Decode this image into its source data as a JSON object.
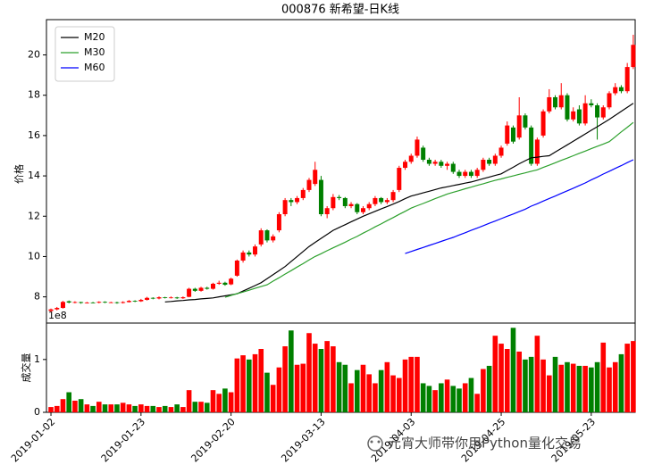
{
  "chart_data": [
    {
      "type": "candlestick",
      "title": "000876 新希望-日K线",
      "ylabel": "价格",
      "up_color": "#ff0000",
      "down_color": "#008000",
      "open": [
        7.3,
        7.38,
        7.45,
        7.78,
        7.72,
        7.74,
        7.7,
        7.72,
        7.71,
        7.75,
        7.72,
        7.73,
        7.7,
        7.74,
        7.8,
        7.78,
        7.85,
        7.95,
        7.92,
        7.98,
        7.95,
        7.97,
        7.93,
        8.0,
        8.4,
        8.3,
        8.45,
        8.4,
        8.65,
        8.7,
        8.62,
        9.05,
        9.8,
        10.2,
        10.1,
        10.6,
        11.3,
        10.8,
        11.3,
        12.1,
        12.8,
        12.7,
        12.9,
        13.3,
        13.6,
        13.8,
        12.1,
        12.4,
        12.95,
        12.9,
        12.5,
        12.6,
        12.2,
        12.4,
        12.6,
        12.9,
        12.7,
        12.8,
        13.3,
        14.4,
        14.7,
        15.0,
        15.4,
        14.8,
        14.6,
        14.7,
        14.5,
        14.6,
        14.2,
        14.0,
        14.2,
        14.0,
        14.3,
        14.8,
        14.6,
        15.0,
        15.6,
        16.4,
        15.9,
        17.0,
        16.4,
        14.6,
        16.0,
        17.2,
        17.9,
        17.4,
        18.0,
        16.8,
        17.3,
        16.6,
        17.6,
        17.5,
        16.9,
        17.4,
        18.1,
        18.4,
        18.2,
        19.4
      ],
      "high": [
        7.42,
        7.5,
        7.8,
        7.82,
        7.78,
        7.76,
        7.75,
        7.75,
        7.78,
        7.78,
        7.76,
        7.76,
        7.78,
        7.84,
        7.83,
        7.9,
        8.0,
        7.98,
        8.02,
        8.0,
        8.02,
        8.0,
        8.02,
        8.45,
        8.45,
        8.5,
        8.5,
        8.7,
        8.8,
        8.75,
        8.95,
        9.85,
        10.3,
        10.3,
        10.6,
        11.4,
        11.35,
        11.1,
        12.2,
        12.9,
        12.9,
        13.0,
        13.4,
        13.9,
        14.7,
        14.0,
        12.5,
        13.1,
        13.05,
        12.95,
        12.7,
        12.65,
        12.5,
        12.7,
        13.0,
        12.95,
        12.9,
        13.3,
        14.5,
        14.8,
        15.1,
        15.95,
        15.5,
        14.9,
        14.8,
        14.8,
        14.7,
        14.7,
        14.3,
        14.3,
        14.3,
        14.4,
        14.9,
        14.9,
        15.1,
        15.5,
        16.7,
        16.5,
        17.9,
        17.1,
        16.5,
        15.9,
        17.3,
        18.3,
        18.0,
        18.6,
        18.1,
        17.4,
        17.5,
        18.0,
        17.8,
        17.6,
        17.5,
        18.2,
        18.6,
        18.5,
        19.6,
        21.0
      ],
      "low": [
        7.25,
        7.33,
        7.42,
        7.68,
        7.68,
        7.66,
        7.67,
        7.68,
        7.68,
        7.69,
        7.69,
        7.66,
        7.67,
        7.72,
        7.74,
        7.75,
        7.82,
        7.88,
        7.88,
        7.92,
        7.92,
        7.9,
        7.9,
        7.98,
        8.25,
        8.26,
        8.36,
        8.36,
        8.6,
        8.55,
        8.58,
        9.0,
        9.7,
        10.0,
        10.0,
        10.5,
        10.7,
        10.7,
        11.2,
        12.0,
        12.5,
        12.6,
        12.8,
        13.2,
        13.5,
        12.0,
        11.9,
        12.3,
        12.8,
        12.4,
        12.4,
        12.1,
        12.1,
        12.3,
        12.5,
        12.6,
        12.6,
        12.7,
        13.2,
        14.3,
        14.6,
        14.9,
        14.7,
        14.5,
        14.5,
        14.4,
        14.3,
        14.1,
        13.9,
        13.9,
        13.9,
        13.9,
        14.2,
        14.5,
        14.5,
        14.9,
        15.5,
        15.6,
        15.8,
        16.3,
        14.5,
        14.5,
        15.9,
        17.1,
        17.3,
        17.3,
        16.7,
        16.7,
        16.5,
        16.5,
        17.4,
        15.8,
        16.8,
        17.3,
        18.0,
        18.1,
        18.1,
        19.3
      ],
      "close": [
        7.38,
        7.45,
        7.75,
        7.72,
        7.74,
        7.7,
        7.72,
        7.71,
        7.75,
        7.72,
        7.73,
        7.7,
        7.74,
        7.8,
        7.78,
        7.85,
        7.95,
        7.92,
        7.98,
        7.95,
        7.97,
        7.93,
        7.98,
        8.4,
        8.3,
        8.45,
        8.4,
        8.65,
        8.7,
        8.6,
        8.9,
        9.8,
        10.2,
        10.1,
        10.5,
        11.3,
        10.8,
        11.0,
        12.1,
        12.8,
        12.7,
        12.9,
        13.3,
        13.8,
        14.3,
        12.1,
        12.4,
        12.95,
        12.9,
        12.5,
        12.6,
        12.2,
        12.4,
        12.6,
        12.9,
        12.7,
        12.8,
        13.2,
        14.4,
        14.7,
        15.0,
        15.8,
        14.8,
        14.6,
        14.7,
        14.5,
        14.6,
        14.2,
        14.0,
        14.2,
        14.0,
        14.3,
        14.8,
        14.6,
        15.0,
        15.4,
        16.5,
        15.7,
        17.0,
        16.4,
        14.6,
        15.8,
        17.2,
        17.9,
        17.4,
        18.0,
        16.8,
        17.2,
        16.6,
        17.6,
        17.5,
        16.9,
        17.4,
        18.1,
        18.4,
        18.2,
        19.4,
        20.5
      ],
      "series": [
        {
          "name": "M20",
          "color": "#000000",
          "values": [
            null,
            null,
            null,
            null,
            null,
            null,
            null,
            null,
            null,
            null,
            null,
            null,
            null,
            null,
            null,
            null,
            null,
            null,
            null,
            7.75,
            7.77,
            7.8,
            7.82,
            7.85,
            7.87,
            7.9,
            7.92,
            7.95,
            8.0,
            8.05,
            8.1,
            8.15,
            8.29,
            8.42,
            8.56,
            8.7,
            8.9,
            9.1,
            9.3,
            9.5,
            9.75,
            10.0,
            10.25,
            10.5,
            10.7,
            10.9,
            11.1,
            11.3,
            11.44,
            11.58,
            11.72,
            11.86,
            12.0,
            12.12,
            12.24,
            12.36,
            12.48,
            12.6,
            12.73,
            12.87,
            13.0,
            13.08,
            13.16,
            13.24,
            13.32,
            13.4,
            13.46,
            13.52,
            13.58,
            13.64,
            13.7,
            13.78,
            13.86,
            13.94,
            14.02,
            14.1,
            14.27,
            14.43,
            14.6,
            14.75,
            14.9,
            14.93,
            14.97,
            15.0,
            15.18,
            15.36,
            15.54,
            15.72,
            15.9,
            16.08,
            16.26,
            16.44,
            16.62,
            16.8,
            17.0,
            17.2,
            17.4,
            17.6
          ]
        },
        {
          "name": "M30",
          "color": "#2ca02c",
          "values": [
            null,
            null,
            null,
            null,
            null,
            null,
            null,
            null,
            null,
            null,
            null,
            null,
            null,
            null,
            null,
            null,
            null,
            null,
            null,
            null,
            null,
            null,
            null,
            null,
            null,
            null,
            null,
            null,
            null,
            7.98,
            8.07,
            8.16,
            8.24,
            8.33,
            8.42,
            8.51,
            8.6,
            8.78,
            8.95,
            9.13,
            9.3,
            9.48,
            9.65,
            9.83,
            10.0,
            10.14,
            10.29,
            10.43,
            10.57,
            10.71,
            10.86,
            11.0,
            11.16,
            11.31,
            11.47,
            11.62,
            11.78,
            11.93,
            12.09,
            12.24,
            12.4,
            12.52,
            12.63,
            12.75,
            12.87,
            12.98,
            13.1,
            13.19,
            13.27,
            13.36,
            13.44,
            13.53,
            13.61,
            13.7,
            13.78,
            13.85,
            13.93,
            14.0,
            14.08,
            14.15,
            14.23,
            14.3,
            14.42,
            14.53,
            14.65,
            14.77,
            14.88,
            15.0,
            15.12,
            15.23,
            15.35,
            15.47,
            15.58,
            15.7,
            15.94,
            16.18,
            16.41,
            16.65
          ]
        },
        {
          "name": "M60",
          "color": "#0000ff",
          "values": [
            null,
            null,
            null,
            null,
            null,
            null,
            null,
            null,
            null,
            null,
            null,
            null,
            null,
            null,
            null,
            null,
            null,
            null,
            null,
            null,
            null,
            null,
            null,
            null,
            null,
            null,
            null,
            null,
            null,
            null,
            null,
            null,
            null,
            null,
            null,
            null,
            null,
            null,
            null,
            null,
            null,
            null,
            null,
            null,
            null,
            null,
            null,
            null,
            null,
            null,
            null,
            null,
            null,
            null,
            null,
            null,
            null,
            null,
            null,
            10.15,
            10.25,
            10.35,
            10.45,
            10.55,
            10.65,
            10.75,
            10.85,
            10.95,
            11.07,
            11.18,
            11.3,
            11.41,
            11.53,
            11.65,
            11.76,
            11.88,
            12.0,
            12.11,
            12.23,
            12.35,
            12.5,
            12.62,
            12.75,
            12.88,
            13.0,
            13.13,
            13.26,
            13.39,
            13.52,
            13.65,
            13.8,
            13.94,
            14.09,
            14.23,
            14.37,
            14.51,
            14.66,
            14.8
          ]
        }
      ],
      "legend": "upper left",
      "ylim": [
        6.7,
        21.75
      ],
      "yticks": [
        8,
        10,
        12,
        14,
        16,
        18,
        20
      ]
    },
    {
      "type": "bar",
      "ylabel": "成交量",
      "offset_label": "1e8",
      "categories": [
        "2019-01-02",
        null,
        null,
        null,
        null,
        null,
        null,
        null,
        null,
        null,
        null,
        null,
        null,
        null,
        null,
        "2019-01-23",
        null,
        null,
        null,
        null,
        null,
        null,
        null,
        null,
        null,
        null,
        null,
        null,
        null,
        null,
        "2019-02-20",
        null,
        null,
        null,
        null,
        null,
        null,
        null,
        null,
        null,
        null,
        null,
        null,
        null,
        null,
        "2019-03-13",
        null,
        null,
        null,
        null,
        null,
        null,
        null,
        null,
        null,
        null,
        null,
        null,
        null,
        null,
        "2019-04-03",
        null,
        null,
        null,
        null,
        null,
        null,
        null,
        null,
        null,
        null,
        null,
        null,
        null,
        null,
        "2019-04-25",
        null,
        null,
        null,
        null,
        null,
        null,
        null,
        null,
        null,
        null,
        null,
        null,
        null,
        null,
        "2019-05-23",
        null,
        null,
        null,
        null,
        null,
        null,
        null
      ],
      "values": [
        0.1,
        0.12,
        0.25,
        0.38,
        0.22,
        0.25,
        0.15,
        0.12,
        0.2,
        0.15,
        0.15,
        0.15,
        0.18,
        0.15,
        0.12,
        0.15,
        0.12,
        0.12,
        0.1,
        0.12,
        0.1,
        0.15,
        0.1,
        0.42,
        0.2,
        0.2,
        0.18,
        0.42,
        0.35,
        0.45,
        0.38,
        1.02,
        1.08,
        1.0,
        1.1,
        1.2,
        0.75,
        0.52,
        0.85,
        1.25,
        1.55,
        0.9,
        0.92,
        1.5,
        1.3,
        1.2,
        1.35,
        1.25,
        0.95,
        0.9,
        0.55,
        0.8,
        0.9,
        0.72,
        0.55,
        0.8,
        0.95,
        0.7,
        0.65,
        1.0,
        1.05,
        1.05,
        0.55,
        0.5,
        0.42,
        0.55,
        0.62,
        0.5,
        0.45,
        0.55,
        0.65,
        0.35,
        0.82,
        0.88,
        1.45,
        1.3,
        1.2,
        1.6,
        1.15,
        1.0,
        1.05,
        1.45,
        1.0,
        0.7,
        1.05,
        0.9,
        0.95,
        0.92,
        0.88,
        0.88,
        0.85,
        0.95,
        1.32,
        0.85,
        0.95,
        1.1,
        1.3,
        1.35
      ],
      "ylim": [
        0,
        1.69
      ],
      "yticks": [
        0,
        1
      ]
    }
  ],
  "watermark": "元宵大师带你用Python量化交易"
}
